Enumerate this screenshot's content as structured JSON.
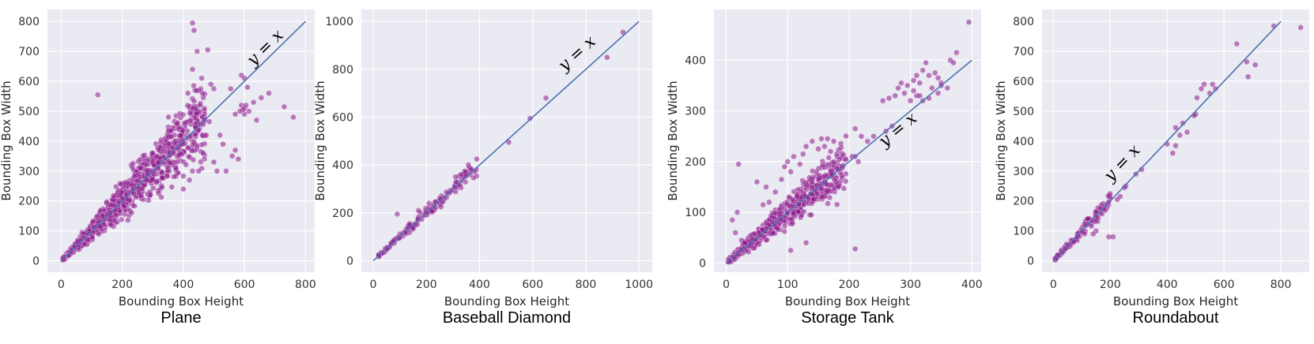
{
  "chart_data": [
    {
      "type": "scatter",
      "title": "Plane",
      "xlabel": "Bounding Box Height",
      "ylabel": "Bounding Box Width",
      "xlim": [
        -45,
        830
      ],
      "ylim": [
        -38,
        840
      ],
      "xticks": [
        0,
        200,
        400,
        600,
        800
      ],
      "yticks": [
        0,
        100,
        200,
        300,
        400,
        500,
        600,
        700,
        800
      ],
      "reference_line": {
        "label": "y = x",
        "from": [
          0,
          0
        ],
        "to": [
          800,
          800
        ]
      },
      "annotation_at": [
        680,
        700
      ],
      "annotation_size": 22,
      "point_color": "#8b1a8b",
      "cluster": {
        "count": 1100,
        "x_range": [
          5,
          470
        ],
        "spread_ratio": 0.17,
        "seed": 11
      },
      "points": [
        [
          430,
          795
        ],
        [
          435,
          770
        ],
        [
          480,
          705
        ],
        [
          445,
          700
        ],
        [
          430,
          640
        ],
        [
          460,
          610
        ],
        [
          415,
          560
        ],
        [
          120,
          555
        ],
        [
          490,
          590
        ],
        [
          500,
          575
        ],
        [
          555,
          575
        ],
        [
          590,
          620
        ],
        [
          600,
          610
        ],
        [
          610,
          580
        ],
        [
          590,
          520
        ],
        [
          600,
          510
        ],
        [
          615,
          500
        ],
        [
          630,
          530
        ],
        [
          655,
          545
        ],
        [
          680,
          560
        ],
        [
          640,
          470
        ],
        [
          730,
          515
        ],
        [
          760,
          480
        ],
        [
          570,
          370
        ],
        [
          580,
          340
        ],
        [
          560,
          350
        ],
        [
          520,
          420
        ],
        [
          530,
          390
        ],
        [
          500,
          330
        ],
        [
          510,
          300
        ],
        [
          540,
          300
        ],
        [
          475,
          420
        ],
        [
          470,
          470
        ],
        [
          455,
          520
        ],
        [
          485,
          465
        ],
        [
          600,
          490
        ],
        [
          595,
          505
        ],
        [
          605,
          520
        ],
        [
          585,
          500
        ],
        [
          570,
          490
        ],
        [
          450,
          300
        ],
        [
          430,
          300
        ],
        [
          400,
          240
        ],
        [
          420,
          270
        ],
        [
          380,
          330
        ]
      ]
    },
    {
      "type": "scatter",
      "title": "Baseball Diamond",
      "xlabel": "Bounding Box Height",
      "ylabel": "Bounding Box Width",
      "xlim": [
        -45,
        1050
      ],
      "ylim": [
        -48,
        1050
      ],
      "xticks": [
        0,
        200,
        400,
        600,
        800,
        1000
      ],
      "yticks": [
        0,
        200,
        400,
        600,
        800,
        1000
      ],
      "reference_line": {
        "label": "y = x",
        "from": [
          0,
          0
        ],
        "to": [
          1000,
          1000
        ]
      },
      "annotation_at": [
        780,
        850
      ],
      "annotation_size": 22,
      "point_color": "#8b1a8b",
      "cluster": {
        "count": 150,
        "x_range": [
          20,
          390
        ],
        "spread_ratio": 0.07,
        "seed": 23
      },
      "points": [
        [
          940,
          955
        ],
        [
          880,
          850
        ],
        [
          650,
          680
        ],
        [
          590,
          595
        ],
        [
          510,
          495
        ],
        [
          255,
          225
        ],
        [
          310,
          350
        ],
        [
          330,
          360
        ],
        [
          350,
          355
        ],
        [
          90,
          195
        ],
        [
          170,
          210
        ],
        [
          210,
          240
        ]
      ]
    },
    {
      "type": "scatter",
      "title": "Storage Tank",
      "xlabel": "Bounding Box Height",
      "ylabel": "Bounding Box Width",
      "xlim": [
        -20,
        415
      ],
      "ylim": [
        -18,
        500
      ],
      "xticks": [
        0,
        100,
        200,
        300,
        400
      ],
      "yticks": [
        0,
        100,
        200,
        300,
        400
      ],
      "reference_line": {
        "label": "y = x",
        "from": [
          0,
          0
        ],
        "to": [
          400,
          400
        ]
      },
      "annotation_at": [
        285,
        255
      ],
      "annotation_size": 22,
      "point_color": "#8b1a8b",
      "cluster": {
        "count": 700,
        "x_range": [
          3,
          195
        ],
        "spread_ratio": 0.16,
        "seed": 37
      },
      "points": [
        [
          395,
          475
        ],
        [
          375,
          415
        ],
        [
          365,
          400
        ],
        [
          325,
          395
        ],
        [
          320,
          380
        ],
        [
          330,
          370
        ],
        [
          340,
          375
        ],
        [
          345,
          365
        ],
        [
          350,
          355
        ],
        [
          335,
          345
        ],
        [
          315,
          355
        ],
        [
          305,
          340
        ],
        [
          310,
          330
        ],
        [
          320,
          320
        ],
        [
          300,
          320
        ],
        [
          330,
          325
        ],
        [
          345,
          335
        ],
        [
          290,
          335
        ],
        [
          295,
          350
        ],
        [
          310,
          370
        ],
        [
          255,
          320
        ],
        [
          265,
          325
        ],
        [
          275,
          330
        ],
        [
          280,
          345
        ],
        [
          285,
          355
        ],
        [
          370,
          395
        ],
        [
          360,
          345
        ],
        [
          350,
          350
        ],
        [
          315,
          330
        ],
        [
          305,
          360
        ],
        [
          270,
          270
        ],
        [
          210,
          265
        ],
        [
          220,
          250
        ],
        [
          205,
          210
        ],
        [
          210,
          210
        ],
        [
          215,
          200
        ],
        [
          230,
          240
        ],
        [
          240,
          250
        ],
        [
          260,
          260
        ],
        [
          195,
          205
        ],
        [
          185,
          205
        ],
        [
          180,
          215
        ],
        [
          175,
          240
        ],
        [
          165,
          245
        ],
        [
          160,
          230
        ],
        [
          155,
          245
        ],
        [
          170,
          220
        ],
        [
          150,
          225
        ],
        [
          140,
          240
        ],
        [
          130,
          230
        ],
        [
          125,
          215
        ],
        [
          110,
          210
        ],
        [
          100,
          200
        ],
        [
          95,
          190
        ],
        [
          120,
          195
        ],
        [
          105,
          180
        ],
        [
          20,
          195
        ],
        [
          18,
          100
        ],
        [
          10,
          85
        ],
        [
          15,
          60
        ],
        [
          25,
          45
        ],
        [
          30,
          40
        ],
        [
          130,
          40
        ],
        [
          105,
          25
        ],
        [
          210,
          28
        ],
        [
          50,
          160
        ],
        [
          65,
          150
        ],
        [
          80,
          140
        ],
        [
          90,
          165
        ],
        [
          70,
          120
        ],
        [
          60,
          115
        ]
      ]
    },
    {
      "type": "scatter",
      "title": "Roundabout",
      "xlabel": "Bounding Box Height",
      "ylabel": "Bounding Box Width",
      "xlim": [
        -40,
        900
      ],
      "ylim": [
        -38,
        840
      ],
      "xticks": [
        0,
        200,
        400,
        600,
        800
      ],
      "yticks": [
        0,
        100,
        200,
        300,
        400,
        500,
        600,
        700,
        800
      ],
      "reference_line": {
        "label": "y = x",
        "from": [
          0,
          0
        ],
        "to": [
          800,
          800
        ]
      },
      "annotation_at": [
        255,
        315
      ],
      "annotation_size": 22,
      "point_color": "#8b1a8b",
      "cluster": {
        "count": 120,
        "x_range": [
          5,
          200
        ],
        "spread_ratio": 0.1,
        "seed": 53
      },
      "points": [
        [
          870,
          780
        ],
        [
          775,
          785
        ],
        [
          680,
          665
        ],
        [
          685,
          615
        ],
        [
          645,
          725
        ],
        [
          710,
          655
        ],
        [
          560,
          590
        ],
        [
          570,
          575
        ],
        [
          550,
          560
        ],
        [
          530,
          590
        ],
        [
          520,
          575
        ],
        [
          505,
          545
        ],
        [
          500,
          490
        ],
        [
          495,
          485
        ],
        [
          470,
          430
        ],
        [
          455,
          460
        ],
        [
          445,
          420
        ],
        [
          430,
          445
        ],
        [
          430,
          385
        ],
        [
          400,
          390
        ],
        [
          420,
          360
        ],
        [
          310,
          305
        ],
        [
          290,
          290
        ],
        [
          255,
          250
        ],
        [
          250,
          245
        ],
        [
          235,
          215
        ],
        [
          225,
          205
        ],
        [
          195,
          80
        ],
        [
          210,
          80
        ],
        [
          165,
          175
        ],
        [
          150,
          100
        ],
        [
          140,
          90
        ],
        [
          110,
          90
        ],
        [
          120,
          140
        ]
      ]
    }
  ]
}
